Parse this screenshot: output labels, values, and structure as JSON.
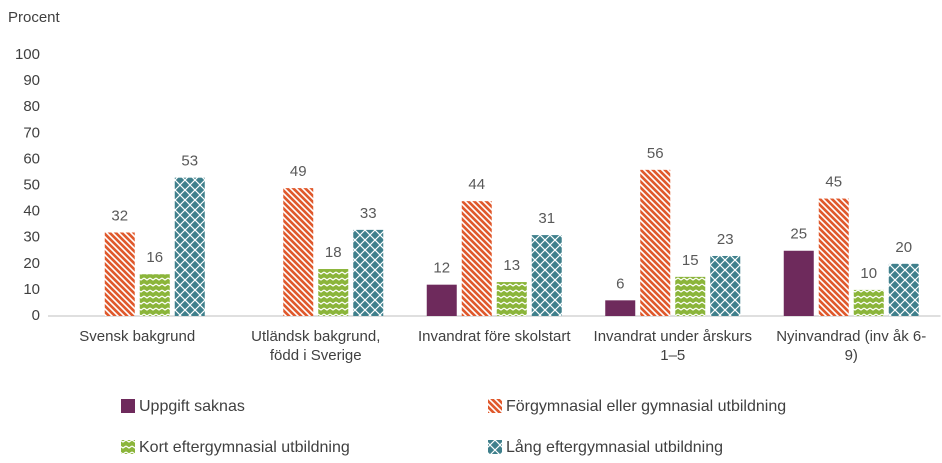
{
  "chart_data": {
    "type": "bar",
    "y_label": "Procent",
    "categories": [
      "Svensk bakgrund",
      "Utländsk bakgrund, född i Sverige",
      "Invandrat före skolstart",
      "Invandrat under årskurs 1–5",
      "Nyinvandrad (inv åk 6-9)"
    ],
    "series": [
      {
        "name": "Uppgift saknas",
        "color": "#6e2a5c",
        "values": [
          null,
          null,
          12,
          6,
          25
        ]
      },
      {
        "name": "Förgymnasial eller gymnasial utbildning",
        "color": "#e0592c",
        "values": [
          32,
          49,
          44,
          56,
          45
        ]
      },
      {
        "name": "Kort eftergymnasial utbildning",
        "color": "#8bb53a",
        "values": [
          16,
          18,
          13,
          15,
          10
        ]
      },
      {
        "name": "Lång eftergymnasial utbildning",
        "color": "#3f808c",
        "values": [
          53,
          33,
          31,
          23,
          20
        ]
      }
    ],
    "ylim": [
      0,
      100
    ],
    "yticks": [
      0,
      10,
      20,
      30,
      40,
      50,
      60,
      70,
      80,
      90,
      100
    ],
    "grid": false
  }
}
